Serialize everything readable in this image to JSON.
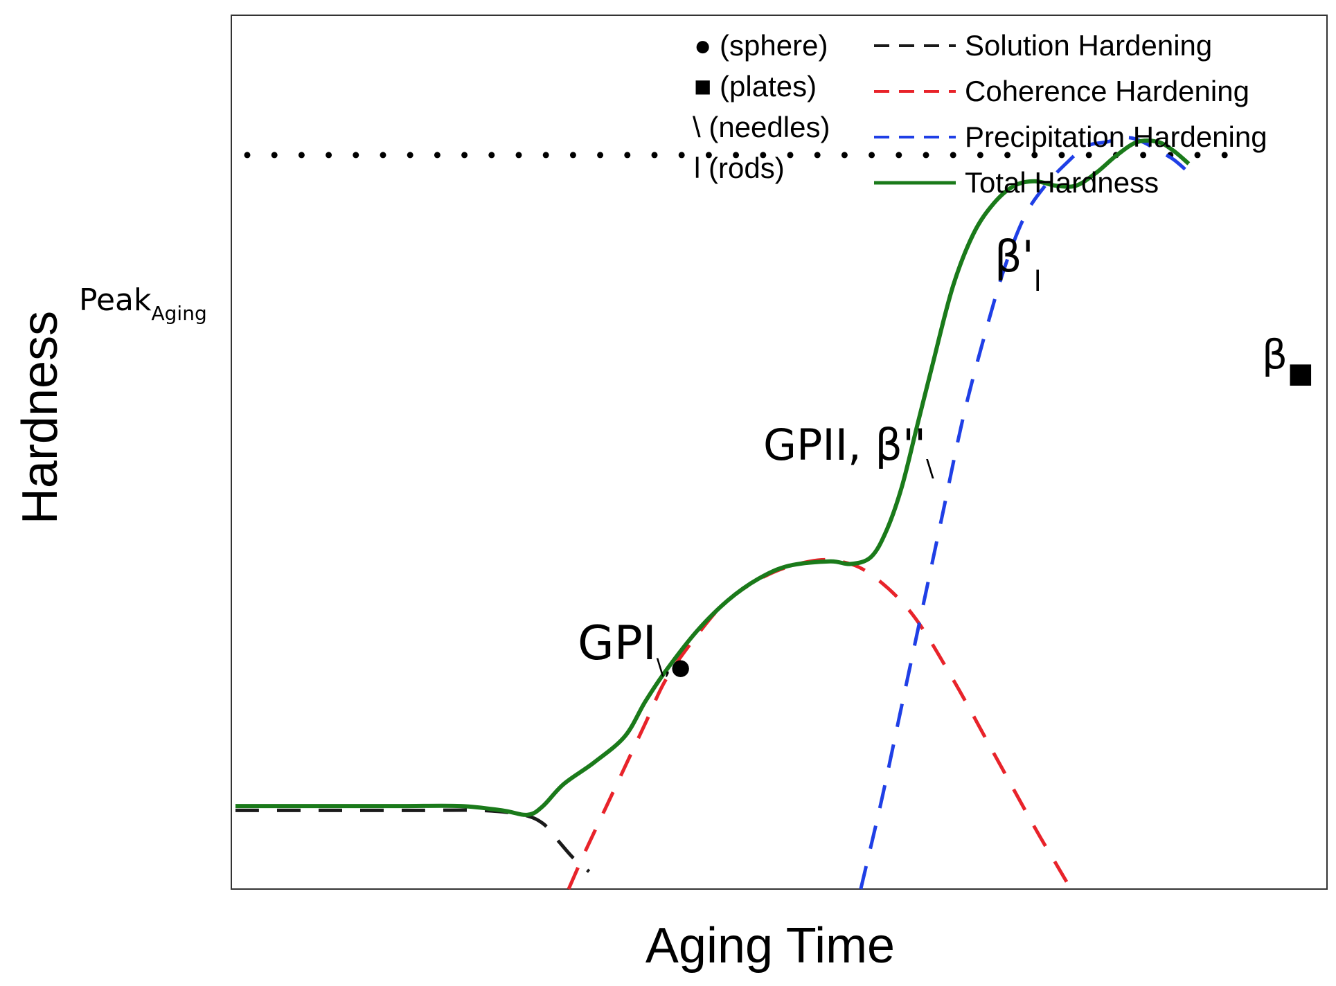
{
  "chart_data": {
    "type": "line",
    "title": "",
    "xlabel": "Aging Time",
    "ylabel": "Hardness",
    "xlim": [
      0,
      100
    ],
    "ylim": [
      0,
      100
    ],
    "grid": false,
    "reference_line": {
      "label_main": "Peak",
      "label_sub": "Aging",
      "y": 84,
      "style": "dotted",
      "color": "#000000"
    },
    "series": [
      {
        "name": "Solution Hardening",
        "style": "dashed",
        "color": "#1a1a1a",
        "x": [
          0,
          6,
          12,
          18,
          24,
          28,
          30,
          31.5,
          33,
          34.5
        ],
        "y": [
          9,
          9,
          9,
          9,
          9,
          8.5,
          7.5,
          5.5,
          3.5,
          2
        ]
      },
      {
        "name": "Coherence Hardening",
        "style": "dashed",
        "color": "#e8232a",
        "x": [
          32.5,
          34,
          36,
          38,
          40,
          42,
          45,
          48,
          52,
          56,
          59,
          62,
          66,
          70,
          74,
          78,
          80,
          81.5
        ],
        "y": [
          0,
          4,
          9,
          14,
          19,
          24,
          29,
          33,
          36,
          37.5,
          37.5,
          36,
          31.5,
          24,
          15.5,
          7,
          3,
          0
        ]
      },
      {
        "name": "Precipitation Hardening",
        "style": "dashed",
        "color": "#1f3fe6",
        "x": [
          61,
          63,
          65,
          67,
          69,
          71,
          73,
          75,
          77,
          79,
          81,
          83,
          85,
          87,
          88.5,
          90,
          91.5,
          93
        ],
        "y": [
          0,
          10,
          21,
          32,
          43,
          54,
          63,
          71,
          77,
          80.5,
          83,
          85,
          85.5,
          86,
          85.5,
          84.5,
          83.5,
          82
        ]
      },
      {
        "name": "Total Hardness",
        "style": "solid",
        "color": "#1a7a1a",
        "x": [
          0,
          8,
          16,
          22,
          26,
          28.5,
          30,
          32,
          35,
          38,
          40,
          42,
          45,
          48,
          51,
          54,
          58,
          60,
          62,
          63.5,
          65,
          66.5,
          68,
          70,
          72,
          74,
          76,
          78,
          80,
          82,
          84,
          86,
          88,
          90,
          91.5,
          93
        ],
        "y": [
          9.5,
          9.5,
          9.5,
          9.5,
          9,
          8.5,
          9.5,
          12,
          14.5,
          17.5,
          21.5,
          25,
          29.5,
          33,
          35.5,
          37,
          37.5,
          37.2,
          38,
          41,
          46,
          53,
          60,
          69,
          75,
          78.5,
          80.5,
          81,
          80.5,
          80.5,
          82,
          84,
          85.5,
          85.5,
          84.5,
          83
        ]
      }
    ],
    "legend": {
      "placement": "top-right",
      "shape_key": [
        {
          "symbol": "●",
          "text": "(sphere)"
        },
        {
          "symbol": "■",
          "text": "(plates)"
        },
        {
          "symbol": "\\",
          "text": "(needles)"
        },
        {
          "symbol": "l",
          "text": "(rods)"
        }
      ],
      "line_entries": [
        {
          "name": "Solution Hardening",
          "style": "dashed",
          "color": "#1a1a1a"
        },
        {
          "name": "Coherence Hardening",
          "style": "dashed",
          "color": "#e8232a"
        },
        {
          "name": "Precipitation Hardening",
          "style": "dashed",
          "color": "#1f3fe6"
        },
        {
          "name": "Total Hardness",
          "style": "solid",
          "color": "#1a7a1a"
        }
      ]
    },
    "annotations": [
      {
        "main": "GPI",
        "sub": "\\,",
        "marker": "●",
        "at_x": 31,
        "at_y": 27
      },
      {
        "main": "GPII, β''",
        "sub": "\\",
        "marker": "",
        "at_x": 49,
        "at_y": 51
      },
      {
        "main": "β'",
        "sub": "l",
        "marker": "",
        "at_x": 70,
        "at_y": 90.5
      },
      {
        "main": "β",
        "sub": "",
        "marker": "■",
        "at_x": 94.5,
        "at_y": 79
      }
    ]
  }
}
